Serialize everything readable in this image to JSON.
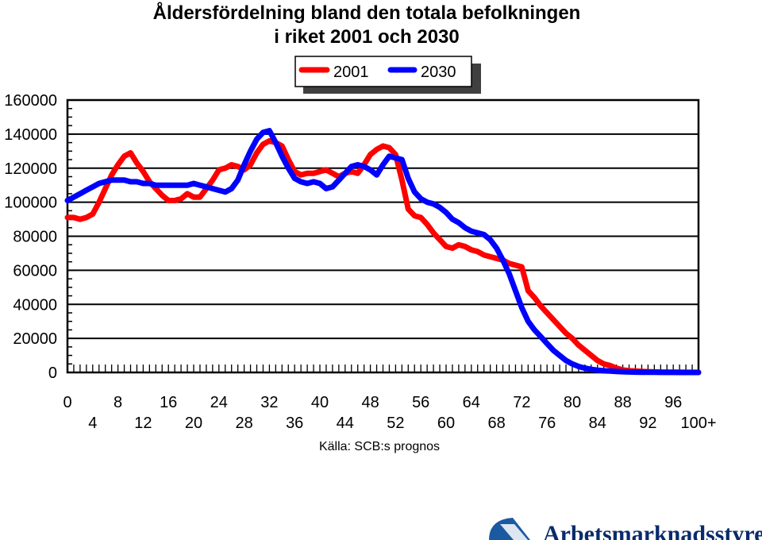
{
  "chart_data": {
    "type": "line",
    "title": "Åldersfördelning bland den totala befolkningen",
    "subtitle": "i riket 2001 och 2030",
    "xlabel": "",
    "ylabel": "",
    "xlim": [
      0,
      100
    ],
    "ylim": [
      0,
      160000
    ],
    "grid": "horizontal",
    "legend_position": "top-center",
    "y_ticks": [
      "0",
      "20000",
      "40000",
      "60000",
      "80000",
      "100000",
      "120000",
      "140000",
      "160000"
    ],
    "x_ticks_upper": [
      "0",
      "8",
      "16",
      "24",
      "32",
      "40",
      "48",
      "56",
      "64",
      "72",
      "80",
      "88",
      "96"
    ],
    "x_ticks_lower": [
      "4",
      "12",
      "20",
      "28",
      "36",
      "44",
      "52",
      "60",
      "68",
      "76",
      "84",
      "92",
      "100+"
    ],
    "series": [
      {
        "name": "2001",
        "color": "#ff0000",
        "x": [
          0,
          1,
          2,
          3,
          4,
          5,
          6,
          7,
          8,
          9,
          10,
          11,
          12,
          13,
          14,
          15,
          16,
          17,
          18,
          19,
          20,
          21,
          22,
          23,
          24,
          25,
          26,
          27,
          28,
          29,
          30,
          31,
          32,
          33,
          34,
          35,
          36,
          37,
          38,
          39,
          40,
          41,
          42,
          43,
          44,
          45,
          46,
          47,
          48,
          49,
          50,
          51,
          52,
          53,
          54,
          55,
          56,
          57,
          58,
          59,
          60,
          61,
          62,
          63,
          64,
          65,
          66,
          67,
          68,
          69,
          70,
          71,
          72,
          73,
          74,
          75,
          76,
          77,
          78,
          79,
          80,
          81,
          82,
          83,
          84,
          85,
          86,
          87,
          88,
          89,
          90,
          91,
          92,
          93,
          94,
          95,
          96,
          97,
          98,
          99,
          100
        ],
        "values": [
          91000,
          91000,
          90000,
          91000,
          93000,
          100000,
          108000,
          116000,
          122000,
          127000,
          129000,
          123000,
          118000,
          112000,
          108000,
          104000,
          101000,
          101000,
          102000,
          105000,
          103000,
          103000,
          108000,
          113000,
          119000,
          120000,
          122000,
          121000,
          119000,
          122000,
          129000,
          134000,
          136000,
          135000,
          133000,
          125000,
          118000,
          116000,
          117000,
          117000,
          118000,
          119000,
          117000,
          115000,
          117000,
          118000,
          117000,
          122000,
          128000,
          131000,
          133000,
          132000,
          128000,
          113000,
          96000,
          92000,
          91000,
          87000,
          82000,
          78000,
          74000,
          73000,
          75000,
          74000,
          72000,
          71000,
          69000,
          68000,
          67000,
          66000,
          64000,
          63000,
          62000,
          48000,
          44000,
          39000,
          35000,
          31000,
          27000,
          23000,
          20000,
          16000,
          13000,
          10000,
          7000,
          5000,
          4000,
          2500,
          1500,
          1000,
          800,
          600,
          400,
          300,
          200,
          150,
          100,
          80,
          60,
          40,
          30
        ]
      },
      {
        "name": "2030",
        "color": "#0000ff",
        "x": [
          0,
          1,
          2,
          3,
          4,
          5,
          6,
          7,
          8,
          9,
          10,
          11,
          12,
          13,
          14,
          15,
          16,
          17,
          18,
          19,
          20,
          21,
          22,
          23,
          24,
          25,
          26,
          27,
          28,
          29,
          30,
          31,
          32,
          33,
          34,
          35,
          36,
          37,
          38,
          39,
          40,
          41,
          42,
          43,
          44,
          45,
          46,
          47,
          48,
          49,
          50,
          51,
          52,
          53,
          54,
          55,
          56,
          57,
          58,
          59,
          60,
          61,
          62,
          63,
          64,
          65,
          66,
          67,
          68,
          69,
          70,
          71,
          72,
          73,
          74,
          75,
          76,
          77,
          78,
          79,
          80,
          81,
          82,
          83,
          84,
          85,
          86,
          87,
          88,
          89,
          90,
          91,
          92,
          93,
          94,
          95,
          96,
          97,
          98,
          99,
          100
        ],
        "values": [
          101000,
          103000,
          105000,
          107000,
          109000,
          111000,
          112000,
          113000,
          113000,
          113000,
          112000,
          112000,
          111000,
          111000,
          110000,
          110000,
          110000,
          110000,
          110000,
          110000,
          111000,
          110000,
          109000,
          108000,
          107000,
          106000,
          108000,
          113000,
          122000,
          130000,
          137000,
          141000,
          142000,
          135000,
          127000,
          120000,
          114000,
          112000,
          111000,
          112000,
          111000,
          108000,
          109000,
          113000,
          117000,
          121000,
          122000,
          121000,
          119000,
          116000,
          122000,
          127000,
          126000,
          125000,
          114000,
          106000,
          102000,
          100000,
          99000,
          97000,
          94000,
          90000,
          88000,
          85000,
          83000,
          82000,
          81000,
          78000,
          73000,
          66000,
          58000,
          48000,
          38000,
          30000,
          25000,
          21000,
          17000,
          13000,
          10000,
          7000,
          5000,
          3500,
          2500,
          1800,
          1300,
          1000,
          800,
          600,
          400,
          300,
          200,
          150,
          100,
          80,
          60,
          40,
          30,
          20,
          10,
          5,
          0
        ]
      }
    ],
    "source": "Källa: SCB:s prognos"
  },
  "logo": {
    "text": "Arbetsmarknadsstyrelsen",
    "colors": {
      "stripe": "#1b5aa0",
      "text": "#0a2b6b"
    }
  }
}
